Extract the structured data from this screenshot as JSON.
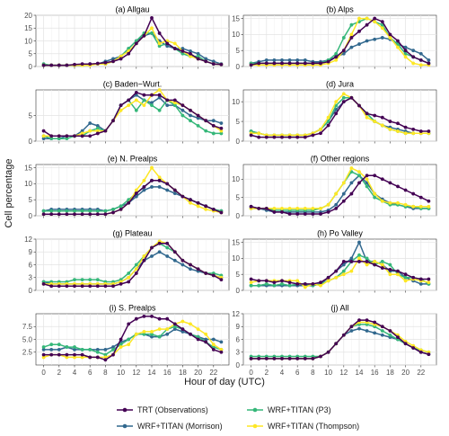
{
  "chart_data": {
    "type": "line",
    "xlabel": "Hour of day (UTC)",
    "ylabel": "Cell percentage",
    "xlim": [
      -1,
      24
    ],
    "x_ticks": [
      0,
      2,
      4,
      6,
      8,
      10,
      12,
      14,
      16,
      18,
      20,
      22
    ],
    "x": [
      0,
      1,
      2,
      3,
      4,
      5,
      6,
      7,
      8,
      9,
      10,
      11,
      12,
      13,
      14,
      15,
      16,
      17,
      18,
      19,
      20,
      21,
      22,
      23
    ],
    "grid": true,
    "legend_position": "bottom",
    "series_meta": [
      {
        "name": "TRT (Observations)",
        "color": "#440154"
      },
      {
        "name": "WRF+TITAN (P3)",
        "color": "#35b779"
      },
      {
        "name": "WRF+TITAN (Morrison)",
        "color": "#31688e"
      },
      {
        "name": "WRF+TITAN (Thompson)",
        "color": "#fde725"
      }
    ],
    "panels": [
      {
        "title": "(a) Allgau",
        "ylim": [
          0,
          20
        ],
        "yticks": [
          0,
          5,
          10,
          15,
          20
        ],
        "series": [
          [
            0.5,
            0.5,
            0.5,
            0.5,
            0.8,
            1,
            1,
            1.2,
            1.5,
            2,
            3,
            5,
            9,
            12,
            19,
            13,
            9,
            7,
            6,
            5,
            3,
            2,
            1,
            0.8
          ],
          [
            1,
            0.5,
            0.5,
            0.5,
            0.5,
            0.5,
            0.8,
            1,
            1,
            2,
            4,
            7,
            10,
            13,
            13,
            8,
            9,
            7,
            5,
            4,
            4,
            2,
            1,
            0.8
          ],
          [
            0.5,
            0.5,
            0.5,
            0.5,
            0.5,
            0.8,
            1,
            1,
            2,
            3,
            4,
            7,
            10,
            12,
            13,
            10,
            8,
            7,
            7,
            6,
            5,
            3,
            2,
            1
          ],
          [
            0.5,
            0.5,
            0.5,
            0.5,
            0.5,
            0.5,
            0.5,
            1,
            1,
            2,
            4,
            6,
            9,
            12,
            15,
            9,
            10,
            9,
            6,
            4,
            3,
            2,
            1,
            0.8
          ]
        ]
      },
      {
        "title": "(b) Alps",
        "ylim": [
          0,
          16
        ],
        "yticks": [
          0,
          5,
          10,
          15
        ],
        "series": [
          [
            0.5,
            1,
            1,
            1,
            1,
            1,
            1,
            1,
            1,
            1,
            1.5,
            3,
            5,
            9,
            11,
            13,
            15,
            14,
            10,
            8,
            5,
            3,
            2,
            1
          ],
          [
            1,
            1,
            1,
            1,
            1,
            1,
            1,
            1,
            1,
            1,
            2,
            4,
            9,
            13,
            14,
            15,
            14,
            13,
            9,
            7,
            4,
            3,
            2,
            1
          ],
          [
            1,
            1.5,
            2,
            2,
            2,
            2,
            2,
            2,
            1.5,
            1.5,
            2,
            3,
            4,
            6,
            7,
            8,
            8.5,
            9,
            8.5,
            7,
            6,
            5,
            4,
            2
          ],
          [
            0.5,
            0.5,
            0.5,
            0.5,
            0.5,
            0.5,
            0.5,
            0.5,
            0.5,
            0.5,
            1,
            2,
            5,
            10,
            15,
            15,
            14,
            12,
            9,
            6,
            3,
            1,
            0.5,
            0.5
          ]
        ]
      },
      {
        "title": "(c) Baden−Wurt.",
        "ylim": [
          0,
          10
        ],
        "yticks": [
          0,
          5
        ],
        "series": [
          [
            2,
            1,
            1,
            1,
            1,
            1,
            1,
            1.5,
            2,
            4,
            7,
            8,
            9.5,
            9,
            9,
            9,
            8,
            8,
            7,
            6,
            5,
            4,
            3,
            2.5
          ],
          [
            1,
            0.5,
            0.5,
            0.5,
            1,
            1,
            2,
            2.5,
            2,
            4,
            7,
            8,
            6,
            8,
            7,
            6,
            8,
            7,
            5,
            4,
            3,
            2,
            1.5,
            1.5
          ],
          [
            0.5,
            0.5,
            0.5,
            1,
            1,
            2,
            3.5,
            3,
            2,
            4,
            7,
            8,
            9,
            8,
            7.5,
            8.5,
            7,
            7,
            6,
            5,
            4.5,
            4,
            4,
            3.5
          ],
          [
            1,
            1,
            1,
            1,
            1,
            1.5,
            2,
            2,
            2,
            4,
            6,
            7,
            8,
            7,
            9,
            10,
            8,
            7.5,
            7,
            6,
            5,
            4,
            3,
            2
          ]
        ]
      },
      {
        "title": "(d) Jura",
        "ylim": [
          0,
          13
        ],
        "yticks": [
          0,
          5,
          10
        ],
        "series": [
          [
            1.5,
            1,
            1,
            1,
            1,
            1,
            1,
            1,
            1.5,
            2,
            4,
            7,
            10,
            11,
            9,
            7,
            6.5,
            6,
            5,
            4.5,
            3.5,
            3,
            2.5,
            2.5
          ],
          [
            2.5,
            2,
            1.5,
            1.5,
            1.5,
            1.5,
            1.5,
            1.5,
            2,
            3,
            5,
            9,
            11,
            11,
            9,
            7,
            5,
            4,
            3,
            2.5,
            2,
            2,
            2,
            2
          ],
          [
            2.5,
            2,
            1.5,
            1.5,
            1.5,
            1.5,
            1.5,
            1.5,
            2,
            3,
            5,
            8,
            10,
            11,
            9,
            7,
            5,
            4,
            3.5,
            3,
            2.5,
            2,
            2,
            2
          ],
          [
            2,
            2,
            1.5,
            1.5,
            1.5,
            1.5,
            1.5,
            1.5,
            2,
            3,
            6,
            10,
            12,
            11,
            9,
            6,
            5,
            4,
            3,
            2.5,
            2,
            2,
            2,
            2
          ]
        ]
      },
      {
        "title": "(e) N. Prealps",
        "ylim": [
          0,
          16
        ],
        "yticks": [
          0,
          5,
          10,
          15
        ],
        "series": [
          [
            0.5,
            0.5,
            0.5,
            0.5,
            0.5,
            0.5,
            0.5,
            0.5,
            0.5,
            1,
            2,
            4,
            7,
            9,
            11,
            11,
            10,
            8,
            6,
            5,
            4,
            3,
            2,
            1
          ],
          [
            1.5,
            1.5,
            1.5,
            1.5,
            1.5,
            1.5,
            1.5,
            1.5,
            1.5,
            2,
            3,
            5,
            7,
            9,
            11,
            11,
            10,
            8,
            6,
            5,
            4,
            3,
            2,
            1.5
          ],
          [
            1.5,
            2,
            2,
            2,
            2,
            2,
            2,
            2,
            1.5,
            2,
            3,
            4,
            6,
            8,
            9,
            9,
            8,
            7,
            6,
            5,
            4,
            3,
            2,
            1.5
          ],
          [
            0.5,
            0.5,
            0.5,
            0.5,
            0.5,
            0.5,
            0.5,
            0.5,
            0.5,
            1,
            2,
            4,
            8,
            11,
            15,
            12,
            10,
            8,
            6,
            4,
            3,
            2,
            1.5,
            1
          ]
        ]
      },
      {
        "title": "(f) Other regions",
        "ylim": [
          0,
          14
        ],
        "yticks": [
          0,
          5,
          10
        ],
        "series": [
          [
            2.5,
            2,
            2,
            1,
            1,
            0.5,
            0.5,
            0.5,
            0.5,
            0.5,
            1,
            2,
            4,
            6,
            9,
            11,
            11,
            10,
            9,
            8,
            7,
            6,
            5,
            4
          ],
          [
            2,
            2,
            2,
            1.5,
            1.5,
            1.5,
            1.5,
            1.5,
            1.5,
            2,
            3,
            6,
            9,
            12,
            11,
            8,
            5,
            4,
            3,
            3,
            2.5,
            2.5,
            2,
            2
          ],
          [
            2.5,
            2,
            1.5,
            1,
            1,
            1,
            1,
            1,
            1,
            1,
            1.5,
            3,
            6,
            9,
            11,
            9,
            6,
            4.5,
            3.5,
            3,
            2.5,
            2,
            2,
            2
          ],
          [
            2,
            2,
            2,
            2,
            2,
            2,
            2,
            2,
            2,
            2,
            3,
            6,
            9,
            13,
            12,
            10,
            6,
            4,
            3.5,
            3.5,
            3,
            2.5,
            2.5,
            2.5
          ]
        ]
      },
      {
        "title": "(g) Plateau",
        "ylim": [
          0,
          12
        ],
        "yticks": [
          0,
          3,
          6,
          9,
          12
        ],
        "series": [
          [
            1.5,
            1,
            1,
            1,
            1,
            1,
            1,
            1,
            1,
            1,
            1.5,
            2,
            4,
            7,
            10,
            11,
            11,
            9,
            7,
            6,
            5,
            4,
            3.5,
            2.5
          ],
          [
            2,
            2,
            2,
            2,
            2.5,
            2.5,
            2.5,
            2.5,
            2,
            2,
            2.5,
            4,
            6,
            8,
            10,
            11,
            10,
            9,
            7,
            6,
            5,
            4,
            4,
            3.5
          ],
          [
            2,
            1.5,
            1.5,
            1.5,
            1.5,
            1.5,
            1.5,
            1.5,
            1.5,
            1.5,
            2,
            3,
            5,
            7,
            8,
            9,
            8,
            7,
            6,
            5,
            4.5,
            4,
            3.5,
            3
          ],
          [
            1.5,
            1.5,
            1.5,
            1.5,
            1.5,
            1.5,
            1.5,
            1.5,
            1.5,
            1.5,
            2,
            3,
            5,
            8,
            10,
            11.5,
            11,
            9,
            7,
            6,
            5,
            4,
            3.5,
            3
          ]
        ]
      },
      {
        "title": "(h) Po Valley",
        "ylim": [
          0,
          16
        ],
        "yticks": [
          0,
          5,
          10,
          15
        ],
        "series": [
          [
            3.5,
            3,
            3,
            2.5,
            3,
            2.5,
            2,
            2,
            2,
            2.5,
            4,
            6,
            9,
            9,
            9,
            9,
            8,
            7,
            6.5,
            6,
            5,
            4,
            3.5,
            3.5
          ],
          [
            1.5,
            1.5,
            2,
            1.5,
            2,
            1.5,
            2,
            2,
            1.5,
            2,
            3,
            4,
            6,
            9,
            11,
            10,
            8,
            9,
            8,
            5,
            4,
            4,
            3.5,
            2
          ],
          [
            1.5,
            1.5,
            1.5,
            1.5,
            1.5,
            1.5,
            1.5,
            1.5,
            1.5,
            2,
            4,
            6,
            8,
            10,
            15,
            9,
            9,
            8,
            6,
            6,
            4,
            3,
            2,
            2
          ],
          [
            2.5,
            3,
            3,
            3,
            3,
            3,
            3,
            1,
            2,
            1.5,
            3,
            4,
            5,
            6,
            10,
            8,
            9,
            8,
            5,
            5,
            3,
            3.5,
            3,
            2.5
          ]
        ]
      },
      {
        "title": "(i) S. Prealps",
        "ylim": [
          0,
          10
        ],
        "yticks": [
          2.5,
          5.0,
          7.5
        ],
        "series": [
          [
            2,
            2,
            2,
            2,
            2,
            2,
            1.5,
            1.5,
            1,
            2,
            5,
            8,
            9,
            9.5,
            9.5,
            9,
            9,
            8,
            7,
            6,
            5,
            4.5,
            3,
            2.5
          ],
          [
            3.5,
            4,
            4,
            3.5,
            3.5,
            3,
            3,
            2.5,
            2,
            3,
            4,
            5,
            6,
            6,
            6,
            5.5,
            7,
            7.5,
            7,
            6,
            5.5,
            4.5,
            3.5,
            3
          ],
          [
            3,
            3,
            3,
            3.5,
            3,
            3,
            3,
            3,
            3,
            3.5,
            4.5,
            5,
            6,
            6,
            5.5,
            5.5,
            6,
            7,
            6.5,
            6,
            5.5,
            5,
            5,
            4.5
          ],
          [
            1.5,
            2,
            2,
            1.5,
            1.5,
            1.5,
            1.5,
            1.5,
            1.5,
            2,
            3.5,
            4,
            6,
            6.5,
            6.5,
            7,
            7,
            8,
            8.5,
            8,
            7,
            6,
            4,
            3
          ]
        ]
      },
      {
        "title": "(j) All",
        "ylim": [
          0,
          12
        ],
        "yticks": [
          0,
          3,
          6,
          9,
          12
        ],
        "series": [
          [
            1.5,
            1.5,
            1.5,
            1.5,
            1.5,
            1.5,
            1.5,
            1.5,
            1.5,
            2,
            3,
            5,
            7,
            9,
            10.5,
            10.5,
            10,
            9,
            8,
            6.5,
            5,
            4,
            3,
            2.5
          ],
          [
            2,
            2,
            2,
            2,
            2,
            2,
            2,
            2,
            2,
            2,
            3,
            5,
            7,
            9,
            9.5,
            9.5,
            9,
            8,
            7,
            6,
            5,
            4,
            3.5,
            3
          ],
          [
            1.5,
            1.5,
            1.5,
            1.5,
            1.5,
            1.5,
            1.5,
            1.5,
            1.5,
            2,
            3,
            5,
            7,
            8,
            8.5,
            8,
            7.5,
            7,
            6.5,
            6,
            5,
            4,
            3,
            2.5
          ],
          [
            1.5,
            1.5,
            1.5,
            1.5,
            1.5,
            1.5,
            1.5,
            1.5,
            1.5,
            2,
            3,
            5,
            7,
            9,
            10,
            10,
            9.5,
            9,
            8,
            7,
            5.5,
            4.5,
            3.5,
            3
          ]
        ]
      }
    ]
  }
}
